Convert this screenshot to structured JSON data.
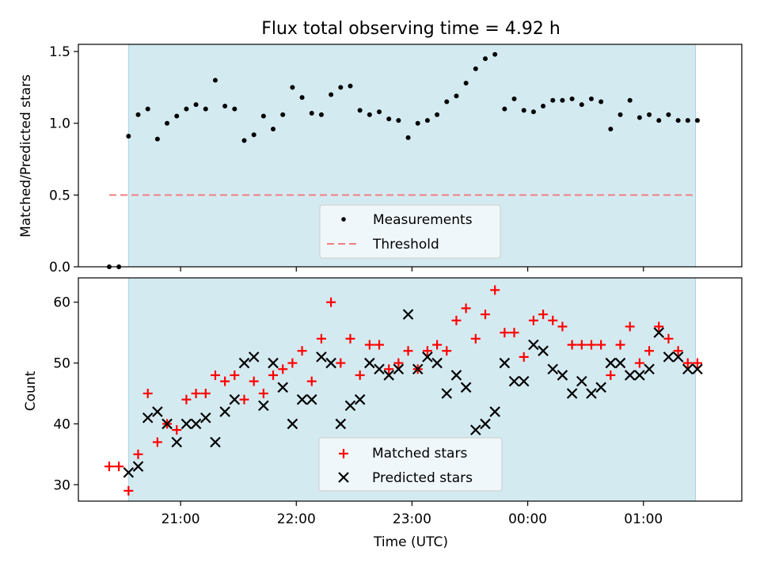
{
  "title": "Flux total observing time = 4.92 h",
  "colors": {
    "background_band": "#d4eaf1",
    "measurement": "#000000",
    "threshold": "#f08080",
    "matched": "#ff0000",
    "predicted": "#000000"
  },
  "chart_data": [
    {
      "type": "scatter",
      "name": "ratio-panel",
      "title": "Flux total observing time = 4.92 h",
      "xlabel": "",
      "ylabel": "Matched/Predicted stars",
      "xlim": [
        "20:07",
        "01:51"
      ],
      "ylim": [
        0,
        1.55
      ],
      "yticks": [
        "0.0",
        "0.5",
        "1.0",
        "1.5"
      ],
      "shaded_interval": [
        "20:33",
        "01:27"
      ],
      "legend": {
        "placement": "lower-center",
        "entries": [
          "Measurements",
          "Threshold"
        ]
      },
      "threshold": {
        "value": 0.5,
        "x_range": [
          "20:23",
          "01:26"
        ]
      },
      "series": [
        {
          "name": "Measurements",
          "marker": "dot",
          "x": [
            "20:23",
            "20:28",
            "20:33",
            "20:38",
            "20:43",
            "20:48",
            "20:53",
            "20:58",
            "21:03",
            "21:08",
            "21:13",
            "21:18",
            "21:23",
            "21:28",
            "21:33",
            "21:38",
            "21:43",
            "21:48",
            "21:53",
            "21:58",
            "22:03",
            "22:08",
            "22:13",
            "22:18",
            "22:23",
            "22:28",
            "22:33",
            "22:38",
            "22:43",
            "22:48",
            "22:53",
            "22:58",
            "23:03",
            "23:08",
            "23:13",
            "23:18",
            "23:23",
            "23:28",
            "23:33",
            "23:38",
            "23:43",
            "23:48",
            "23:53",
            "23:58",
            "00:03",
            "00:08",
            "00:13",
            "00:18",
            "00:23",
            "00:28",
            "00:33",
            "00:38",
            "00:43",
            "00:48",
            "00:53",
            "00:58",
            "01:03",
            "01:08",
            "01:13",
            "01:18",
            "01:23",
            "01:28"
          ],
          "y": [
            0.0,
            0.0,
            0.91,
            1.06,
            1.1,
            0.89,
            1.0,
            1.05,
            1.1,
            1.13,
            1.1,
            1.3,
            1.12,
            1.1,
            0.88,
            0.92,
            1.05,
            0.96,
            1.06,
            1.25,
            1.18,
            1.07,
            1.06,
            1.2,
            1.25,
            1.26,
            1.09,
            1.06,
            1.08,
            1.03,
            1.02,
            0.9,
            1.0,
            1.02,
            1.06,
            1.15,
            1.19,
            1.28,
            1.38,
            1.45,
            1.48,
            1.1,
            1.17,
            1.09,
            1.08,
            1.12,
            1.16,
            1.16,
            1.17,
            1.13,
            1.17,
            1.15,
            0.96,
            1.06,
            1.16,
            1.04,
            1.06,
            1.02,
            1.06,
            1.02,
            1.02,
            1.02
          ]
        }
      ]
    },
    {
      "type": "scatter",
      "name": "count-panel",
      "title": "",
      "xlabel": "Time (UTC)",
      "ylabel": "Count",
      "xlim": [
        "20:07",
        "01:51"
      ],
      "xticks": [
        "21:00",
        "22:00",
        "23:00",
        "00:00",
        "01:00"
      ],
      "ylim": [
        27.3,
        64.0
      ],
      "yticks": [
        "30",
        "40",
        "50",
        "60"
      ],
      "shaded_interval": [
        "20:33",
        "01:27"
      ],
      "legend": {
        "placement": "lower-center",
        "entries": [
          "Matched stars",
          "Predicted stars"
        ]
      },
      "series": [
        {
          "name": "Matched stars",
          "marker": "plus",
          "x": [
            "20:23",
            "20:28",
            "20:33",
            "20:38",
            "20:43",
            "20:48",
            "20:53",
            "20:58",
            "21:03",
            "21:08",
            "21:13",
            "21:18",
            "21:23",
            "21:28",
            "21:33",
            "21:38",
            "21:43",
            "21:48",
            "21:53",
            "21:58",
            "22:03",
            "22:08",
            "22:13",
            "22:18",
            "22:23",
            "22:28",
            "22:33",
            "22:38",
            "22:43",
            "22:48",
            "22:53",
            "22:58",
            "23:03",
            "23:08",
            "23:13",
            "23:18",
            "23:23",
            "23:28",
            "23:33",
            "23:38",
            "23:43",
            "23:48",
            "23:53",
            "23:58",
            "00:03",
            "00:08",
            "00:13",
            "00:18",
            "00:23",
            "00:28",
            "00:33",
            "00:38",
            "00:43",
            "00:48",
            "00:53",
            "00:58",
            "01:03",
            "01:08",
            "01:13",
            "01:18",
            "01:23",
            "01:28"
          ],
          "y": [
            33,
            33,
            29,
            35,
            45,
            37,
            40,
            39,
            44,
            45,
            45,
            48,
            47,
            48,
            44,
            47,
            45,
            48,
            49,
            50,
            52,
            47,
            54,
            60,
            50,
            54,
            48,
            53,
            53,
            49,
            50,
            52,
            49,
            52,
            53,
            52,
            57,
            59,
            54,
            58,
            62,
            55,
            55,
            51,
            57,
            58,
            57,
            56,
            53,
            53,
            53,
            53,
            48,
            53,
            56,
            50,
            52,
            56,
            54,
            52,
            50,
            50
          ]
        },
        {
          "name": "Predicted stars",
          "marker": "x",
          "x": [
            "20:33",
            "20:38",
            "20:43",
            "20:48",
            "20:53",
            "20:58",
            "21:03",
            "21:08",
            "21:13",
            "21:18",
            "21:23",
            "21:28",
            "21:33",
            "21:38",
            "21:43",
            "21:48",
            "21:53",
            "21:58",
            "22:03",
            "22:08",
            "22:13",
            "22:18",
            "22:23",
            "22:28",
            "22:33",
            "22:38",
            "22:43",
            "22:48",
            "22:53",
            "22:58",
            "23:03",
            "23:08",
            "23:13",
            "23:18",
            "23:23",
            "23:28",
            "23:33",
            "23:38",
            "23:43",
            "23:48",
            "23:53",
            "23:58",
            "00:03",
            "00:08",
            "00:13",
            "00:18",
            "00:23",
            "00:28",
            "00:33",
            "00:38",
            "00:43",
            "00:48",
            "00:53",
            "00:58",
            "01:03",
            "01:08",
            "01:13",
            "01:18",
            "01:23",
            "01:28"
          ],
          "y": [
            32,
            33,
            41,
            42,
            40,
            37,
            40,
            40,
            41,
            37,
            42,
            44,
            50,
            51,
            43,
            50,
            46,
            40,
            44,
            44,
            51,
            50,
            40,
            43,
            44,
            50,
            49,
            48,
            49,
            58,
            49,
            51,
            50,
            45,
            48,
            46,
            39,
            40,
            42,
            50,
            47,
            47,
            53,
            52,
            49,
            48,
            45,
            47,
            45,
            46,
            50,
            50,
            48,
            48,
            49,
            55,
            51,
            51,
            49,
            49
          ]
        }
      ]
    }
  ]
}
